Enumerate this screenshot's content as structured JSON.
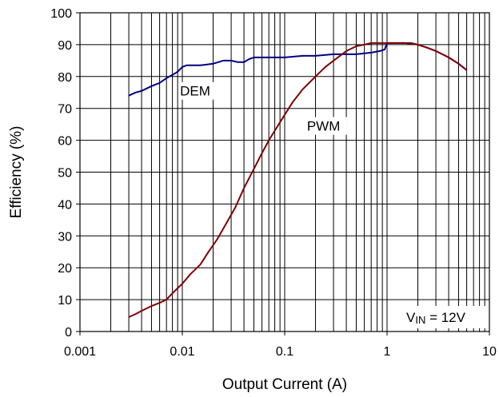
{
  "chart_data": {
    "type": "line",
    "title": "",
    "xlabel": "Output Current (A)",
    "ylabel": "Efficiency (%)",
    "xscale": "log",
    "xlim": [
      0.001,
      10
    ],
    "ylim": [
      0,
      100
    ],
    "x_ticks": [
      "0.001",
      "0.01",
      "0.1",
      "1",
      "10"
    ],
    "y_ticks": [
      "0",
      "10",
      "20",
      "30",
      "40",
      "50",
      "60",
      "70",
      "80",
      "90",
      "100"
    ],
    "grid": true,
    "annotation": {
      "prefix": "V",
      "subscript": "IN",
      "suffix": " = 12V"
    },
    "series": [
      {
        "name": "DEM",
        "color": "#000080",
        "x": [
          0.003,
          0.0035,
          0.004,
          0.005,
          0.006,
          0.007,
          0.008,
          0.009,
          0.01,
          0.011,
          0.013,
          0.015,
          0.02,
          0.025,
          0.03,
          0.035,
          0.04,
          0.045,
          0.05,
          0.06,
          0.07,
          0.08,
          0.1,
          0.15,
          0.2,
          0.3,
          0.5,
          0.7,
          0.85,
          0.95,
          1.0,
          1.3,
          1.7,
          2.0,
          2.5,
          3.0,
          4.0,
          5.0,
          6.0
        ],
        "y": [
          74,
          75,
          75.5,
          77,
          78,
          79.5,
          80.5,
          81.5,
          83,
          83.5,
          83.5,
          83.5,
          84,
          85,
          85,
          84.5,
          84.5,
          85.5,
          86,
          86,
          86,
          86,
          86,
          86.5,
          86.5,
          87,
          87,
          87.5,
          88,
          88.5,
          90.5,
          90.5,
          90.5,
          90,
          89,
          88,
          86,
          84,
          82
        ]
      },
      {
        "name": "PWM",
        "color": "#800000",
        "x": [
          0.003,
          0.0035,
          0.004,
          0.005,
          0.006,
          0.007,
          0.008,
          0.01,
          0.012,
          0.015,
          0.018,
          0.022,
          0.027,
          0.033,
          0.04,
          0.05,
          0.06,
          0.07,
          0.08,
          0.1,
          0.12,
          0.15,
          0.2,
          0.25,
          0.3,
          0.4,
          0.5,
          0.6,
          0.7,
          0.8,
          1.0,
          1.5,
          2.0,
          2.5,
          3.0,
          4.0,
          5.0,
          6.0
        ],
        "y": [
          4.5,
          5.5,
          6.5,
          8,
          9,
          10,
          12,
          15,
          18,
          21,
          25,
          29,
          34,
          39,
          45,
          51,
          56,
          60,
          63,
          68,
          72,
          76,
          80,
          83,
          85,
          88,
          89.5,
          90,
          90.5,
          90.5,
          90.5,
          90.5,
          90,
          89,
          88,
          86,
          84,
          82
        ]
      }
    ]
  }
}
